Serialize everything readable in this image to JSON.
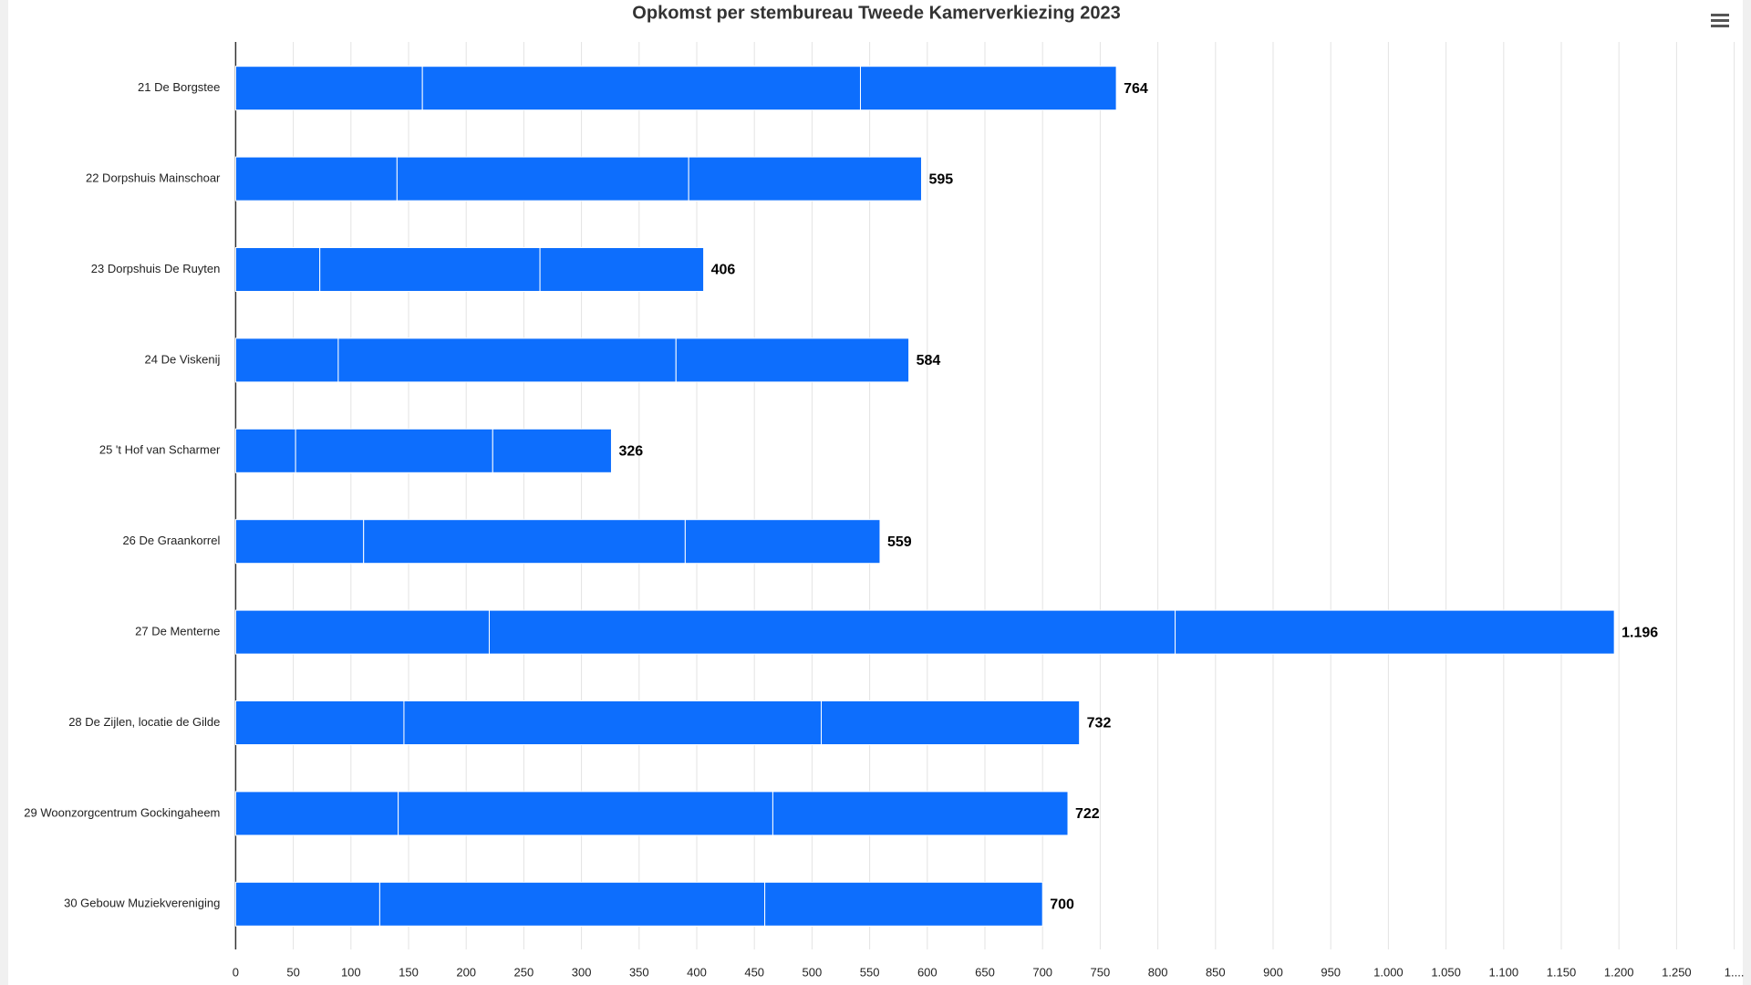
{
  "chart_data": {
    "type": "stacked_barh",
    "title": "Opkomst per stembureau Tweede Kamerverkiezing 2023",
    "categories": [
      "21 De Borgstee",
      "22 Dorpshuis Mainschoar",
      "23 Dorpshuis De Ruyten",
      "24 De Viskenij",
      "25 't Hof van Scharmer",
      "26 De Graankorrel",
      "27 De Menterne",
      "28 De Zijlen, locatie de Gilde",
      "29 Woonzorgcentrum Gockingaheem",
      "30 Gebouw Muziekvereniging"
    ],
    "series": [
      {
        "color": "#0d6efd",
        "values": [
          162,
          140,
          73,
          89,
          52,
          111,
          220,
          146,
          141,
          125
        ]
      },
      {
        "color": "#0d6efd",
        "values": [
          380,
          253,
          191,
          293,
          171,
          279,
          595,
          362,
          325,
          334
        ]
      },
      {
        "color": "#0d6efd",
        "values": [
          222,
          202,
          142,
          202,
          103,
          169,
          381,
          224,
          256,
          241
        ]
      }
    ],
    "totals": [
      764,
      595,
      406,
      584,
      326,
      559,
      1196,
      732,
      722,
      700
    ],
    "value_labels": [
      "764",
      "595",
      "406",
      "584",
      "326",
      "559",
      "1.196",
      "732",
      "722",
      "700"
    ],
    "xlim": [
      0,
      1300
    ],
    "xticks": [
      0,
      50,
      100,
      150,
      200,
      250,
      300,
      350,
      400,
      450,
      500,
      550,
      600,
      650,
      700,
      750,
      800,
      850,
      900,
      950,
      {
        "value": 1000,
        "label": "1.000"
      },
      {
        "value": 1050,
        "label": "1.050"
      },
      {
        "value": 1100,
        "label": "1.100"
      },
      {
        "value": 1150,
        "label": "1.150"
      },
      {
        "value": 1200,
        "label": "1.200"
      },
      {
        "value": 1250,
        "label": "1.250"
      },
      {
        "value": 1300,
        "label": "1...."
      }
    ],
    "grid": true
  }
}
